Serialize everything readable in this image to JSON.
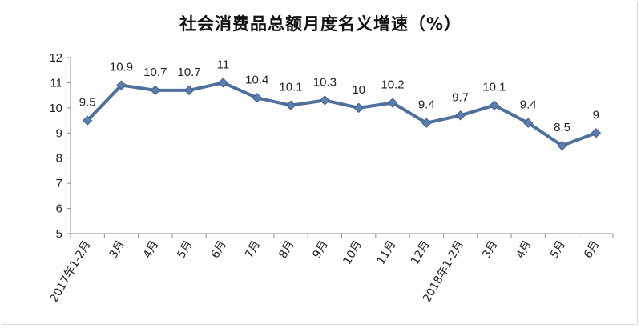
{
  "chart_data": {
    "type": "line",
    "title": "社会消费品总额月度名义增速（%）",
    "xlabel": "",
    "ylabel": "",
    "categories": [
      "2017年1-2月",
      "3月",
      "4月",
      "5月",
      "6月",
      "7月",
      "8月",
      "9月",
      "10月",
      "11月",
      "12月",
      "2018年1-2月",
      "3月",
      "4月",
      "5月",
      "6月"
    ],
    "series": [
      {
        "values": [
          9.5,
          10.9,
          10.7,
          10.7,
          11,
          10.4,
          10.1,
          10.3,
          10,
          10.2,
          9.4,
          9.7,
          10.1,
          9.4,
          8.5,
          9
        ]
      }
    ],
    "data_labels": [
      "9.5",
      "10.9",
      "10.7",
      "10.7",
      "11",
      "10.4",
      "10.1",
      "10.3",
      "10",
      "10.2",
      "9.4",
      "9.7",
      "10.1",
      "9.4",
      "8.5",
      "9"
    ],
    "ylim": [
      5,
      12
    ],
    "yticks": [
      "5",
      "6",
      "7",
      "8",
      "9",
      "10",
      "11",
      "12"
    ],
    "grid": false,
    "legend": "none",
    "colors": {
      "line": "#4f6f9c",
      "marker": "#5b7fb0",
      "axis": "#8c8c8c"
    }
  }
}
